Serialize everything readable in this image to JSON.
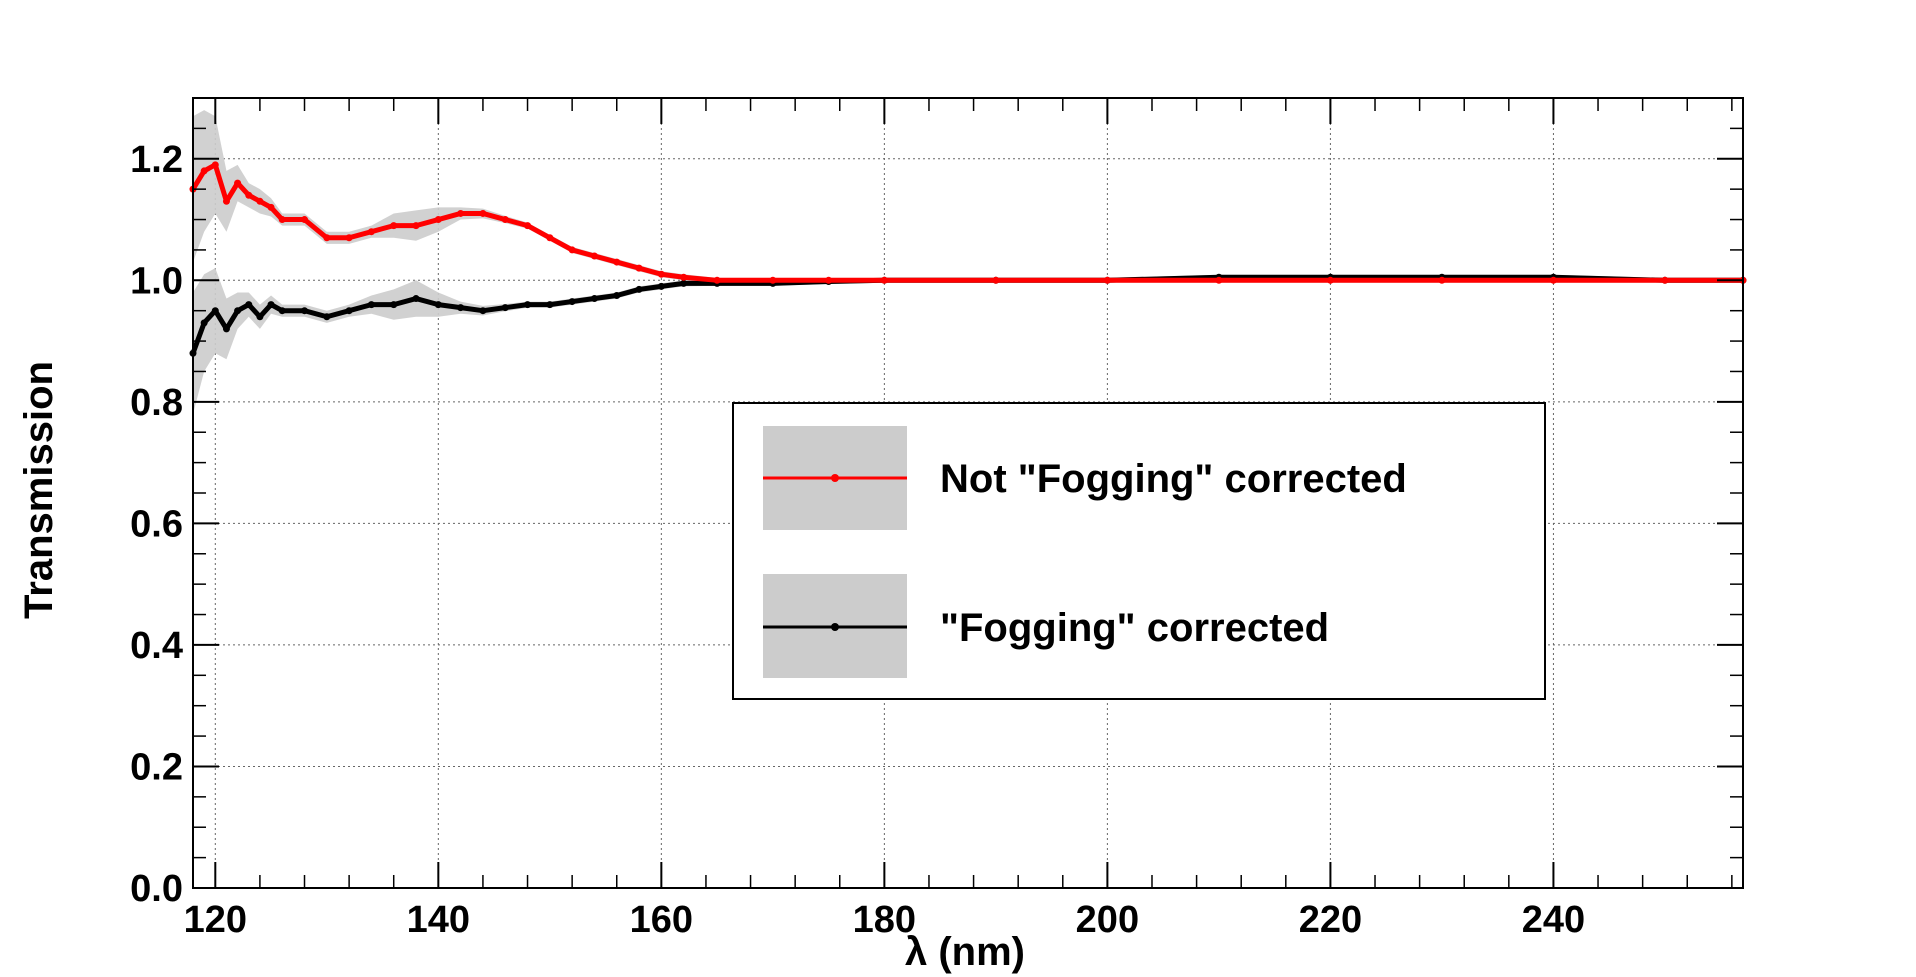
{
  "chart_data": {
    "type": "line",
    "title": "",
    "xlabel": "λ (nm)",
    "ylabel": "Transmission",
    "xlim": [
      118,
      257
    ],
    "ylim": [
      0.0,
      1.3
    ],
    "grid": true,
    "legend_position": "center-right",
    "x_ticks": [
      "120",
      "140",
      "160",
      "180",
      "200",
      "220",
      "240"
    ],
    "x_tick_values": [
      120,
      140,
      160,
      180,
      200,
      220,
      240
    ],
    "y_ticks": [
      "0.0",
      "0.2",
      "0.4",
      "0.6",
      "0.8",
      "1.0",
      "1.2"
    ],
    "y_tick_values": [
      0.0,
      0.2,
      0.4,
      0.6,
      0.8,
      1.0,
      1.2
    ],
    "band_color": "#cccccc",
    "series": [
      {
        "name": "Not \"Fogging\" corrected",
        "color": "#ff0000",
        "x": [
          118,
          119,
          120,
          121,
          122,
          123,
          124,
          125,
          126,
          128,
          130,
          132,
          134,
          136,
          138,
          140,
          142,
          144,
          146,
          148,
          150,
          152,
          154,
          156,
          158,
          160,
          162,
          165,
          170,
          175,
          180,
          190,
          200,
          210,
          220,
          230,
          240,
          250,
          257
        ],
        "y": [
          1.15,
          1.18,
          1.19,
          1.13,
          1.16,
          1.14,
          1.13,
          1.12,
          1.1,
          1.1,
          1.07,
          1.07,
          1.08,
          1.09,
          1.09,
          1.1,
          1.11,
          1.11,
          1.1,
          1.09,
          1.07,
          1.05,
          1.04,
          1.03,
          1.02,
          1.01,
          1.005,
          1.0,
          1.0,
          1.0,
          1.0,
          1.0,
          1.0,
          1.0,
          1.0,
          1.0,
          1.0,
          1.0,
          1.0
        ],
        "band": [
          0.12,
          0.1,
          0.08,
          0.05,
          0.03,
          0.02,
          0.02,
          0.015,
          0.01,
          0.01,
          0.01,
          0.01,
          0.01,
          0.02,
          0.025,
          0.02,
          0.01,
          0.008,
          0.006,
          0.005,
          0.005,
          0.005,
          0.005,
          0.005,
          0.005,
          0.005,
          0.005,
          0.004,
          0.004,
          0.004,
          0.004,
          0.004,
          0.004,
          0.004,
          0.004,
          0.004,
          0.004,
          0.004,
          0.004
        ]
      },
      {
        "name": "\"Fogging\" corrected",
        "color": "#000000",
        "x": [
          118,
          119,
          120,
          121,
          122,
          123,
          124,
          125,
          126,
          128,
          130,
          132,
          134,
          136,
          138,
          140,
          142,
          144,
          146,
          148,
          150,
          152,
          154,
          156,
          158,
          160,
          162,
          165,
          170,
          175,
          180,
          190,
          200,
          210,
          220,
          230,
          240,
          250,
          257
        ],
        "y": [
          0.88,
          0.93,
          0.95,
          0.92,
          0.95,
          0.96,
          0.94,
          0.96,
          0.95,
          0.95,
          0.94,
          0.95,
          0.96,
          0.96,
          0.97,
          0.96,
          0.955,
          0.95,
          0.955,
          0.96,
          0.96,
          0.965,
          0.97,
          0.975,
          0.985,
          0.99,
          0.995,
          0.995,
          0.995,
          0.998,
          1.0,
          1.0,
          1.0,
          1.005,
          1.005,
          1.005,
          1.005,
          1.0,
          1.0
        ],
        "band": [
          0.1,
          0.08,
          0.07,
          0.05,
          0.03,
          0.02,
          0.02,
          0.015,
          0.01,
          0.01,
          0.01,
          0.01,
          0.015,
          0.025,
          0.03,
          0.02,
          0.01,
          0.008,
          0.006,
          0.005,
          0.005,
          0.005,
          0.005,
          0.005,
          0.005,
          0.005,
          0.005,
          0.004,
          0.004,
          0.004,
          0.004,
          0.004,
          0.004,
          0.004,
          0.004,
          0.004,
          0.004,
          0.004,
          0.004
        ]
      }
    ]
  }
}
